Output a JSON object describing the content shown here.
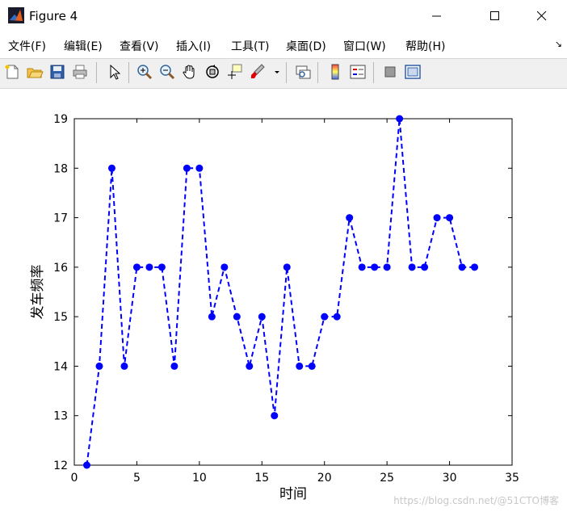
{
  "window": {
    "title": "Figure 4"
  },
  "menu": {
    "items": [
      {
        "label": "文件(F)"
      },
      {
        "label": "编辑(E)"
      },
      {
        "label": "查看(V)"
      },
      {
        "label": "插入(I)"
      },
      {
        "label": "工具(T)"
      },
      {
        "label": "桌面(D)"
      },
      {
        "label": "窗口(W)"
      },
      {
        "label": "帮助(H)"
      }
    ]
  },
  "toolbar": {
    "icons": [
      "new-figure-icon",
      "open-file-icon",
      "save-icon",
      "print-icon",
      "select-arrow-icon",
      "zoom-in-icon",
      "zoom-out-icon",
      "pan-hand-icon",
      "rotate-3d-icon",
      "data-cursor-icon",
      "brush-icon",
      "link-plot-icon",
      "colorbar-icon",
      "legend-icon",
      "hide-plot-tools-icon",
      "show-plot-tools-icon"
    ]
  },
  "watermark": "https://blog.csdn.net/@51CTO博客",
  "chart_data": {
    "type": "line",
    "xlabel": "时间",
    "ylabel": "发车频率",
    "xlim": [
      0,
      35
    ],
    "ylim": [
      12,
      19
    ],
    "xticks": [
      0,
      5,
      10,
      15,
      20,
      25,
      30,
      35
    ],
    "yticks": [
      12,
      13,
      14,
      15,
      16,
      17,
      18,
      19
    ],
    "grid": false,
    "line_style": "dashed",
    "marker": "filled-circle",
    "color": "#0000ff",
    "series": [
      {
        "x": [
          1,
          2,
          3,
          4,
          5,
          6,
          7,
          8,
          9,
          10,
          11,
          12,
          13,
          14,
          15,
          16,
          17,
          18,
          19,
          20,
          21,
          22,
          23,
          24,
          25,
          26,
          27,
          28,
          29,
          30,
          31,
          32
        ],
        "values": [
          12,
          14,
          18,
          14,
          16,
          16,
          16,
          14,
          18,
          18,
          15,
          16,
          15,
          14,
          15,
          13,
          16,
          14,
          14,
          15,
          15,
          17,
          16,
          16,
          16,
          19,
          16,
          16,
          17,
          17,
          16,
          16
        ]
      }
    ]
  }
}
